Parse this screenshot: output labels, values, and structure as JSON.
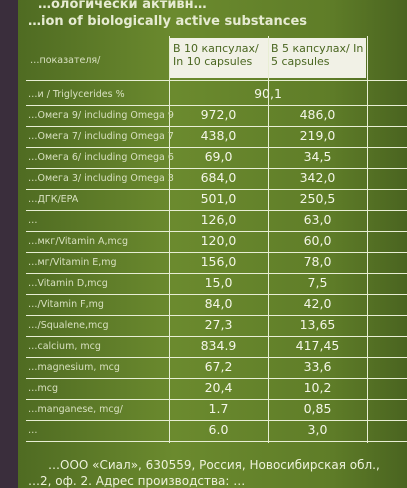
{
  "header": {
    "line1": "…ологически  активн…",
    "line2": "…ion of biologically active substances"
  },
  "table": {
    "columns": [
      "…показателя/",
      "В 10 капсулах/ In 10 capsules",
      "В 5 капсулах/ In 5 capsules"
    ],
    "rows": [
      [
        "…и / Triglycerides %",
        "90,1",
        null
      ],
      [
        "…Омега 9/ including Omega 9",
        "972,0",
        "486,0"
      ],
      [
        "…Омега 7/ including Omega 7",
        "438,0",
        "219,0"
      ],
      [
        "…Омега 6/ including Omega 6",
        "69,0",
        "34,5"
      ],
      [
        "…Омега 3/ including Omega 3",
        "684,0",
        "342,0"
      ],
      [
        "…ДГК/EPA",
        "501,0",
        "250,5"
      ],
      [
        "…",
        "126,0",
        "63,0"
      ],
      [
        "…мкг/Vitamin A,mcg",
        "120,0",
        "60,0"
      ],
      [
        "…мг/Vitamin E,mg",
        "156,0",
        "78,0"
      ],
      [
        "…Vitamin D,mcg",
        "15,0",
        "7,5"
      ],
      [
        "…/Vitamin F,mg",
        "84,0",
        "42,0"
      ],
      [
        "…/Squalene,mcg",
        "27,3",
        "13,65"
      ],
      [
        "…calcium, mcg",
        "834.9",
        "417,45"
      ],
      [
        "…magnesium, mcg",
        "67,2",
        "33,6"
      ],
      [
        "…mcg",
        "20,4",
        "10,2"
      ],
      [
        "…manganese, mcg/",
        "1.7",
        "0,85"
      ],
      [
        "…",
        "6.0",
        "3,0"
      ]
    ]
  },
  "footer": {
    "line1": "…ООО «Сиал», 630559, Россия, Новосибирская обл.,",
    "line2": "…2, оф. 2. Адрес производства: …"
  }
}
